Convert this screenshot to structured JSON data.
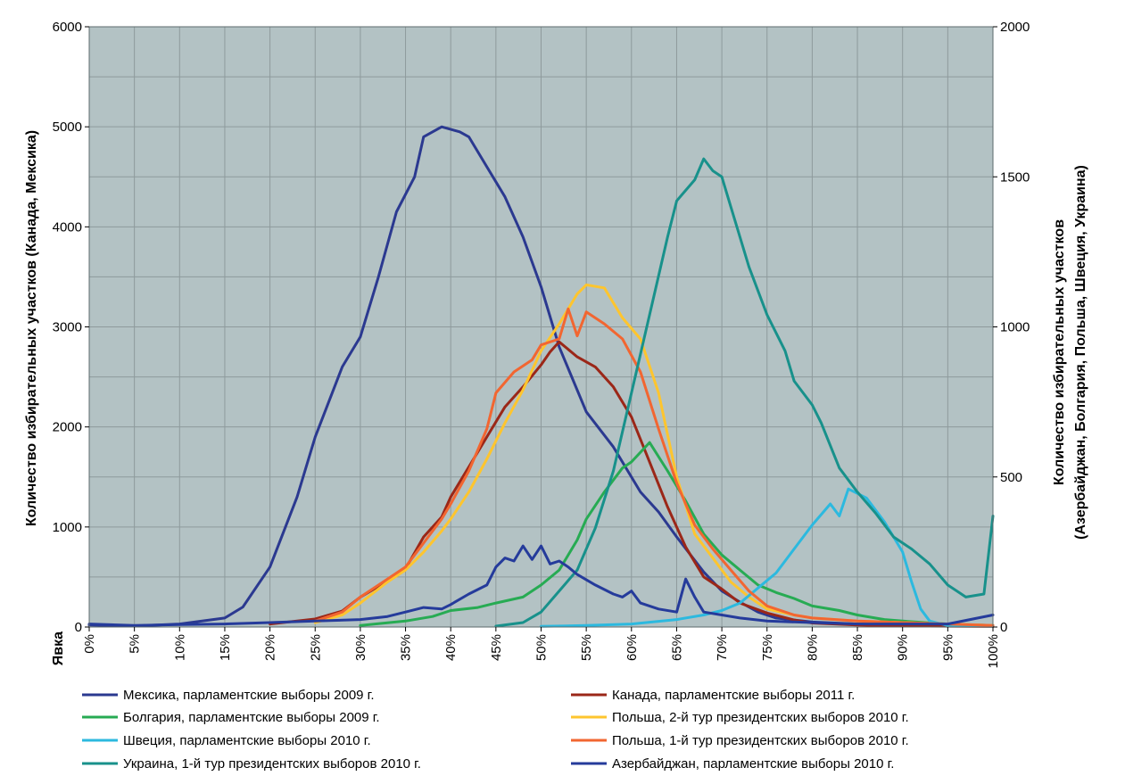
{
  "chart_data": {
    "type": "line",
    "xlabel": "Явка",
    "ylabel_left": "Количество избирательных участков (Канада, Мексика)",
    "ylabel_right_line1": "Количество избирательных участков",
    "ylabel_right_line2": "(Азербайджан, Болгария, Польша, Швеция, Украина)",
    "ylim_left": [
      0,
      6000
    ],
    "ylim_right": [
      0,
      2000
    ],
    "xlim": [
      0,
      100
    ],
    "grid": true,
    "legend_position": "bottom",
    "x_tick_labels": [
      "0%",
      "5%",
      "10%",
      "15%",
      "20%",
      "25%",
      "30%",
      "35%",
      "40%",
      "45%",
      "50%",
      "55%",
      "60%",
      "65%",
      "70%",
      "75%",
      "80%",
      "85%",
      "90%",
      "95%",
      "100%"
    ],
    "y_left_tick_labels": [
      "0",
      "1000",
      "2000",
      "3000",
      "4000",
      "5000",
      "6000"
    ],
    "y_right_tick_labels": [
      "0",
      "500",
      "1000",
      "1500",
      "2000"
    ],
    "series": [
      {
        "name": "Мексика, парламентские выборы 2009 г.",
        "color": "#2b3990",
        "axis": "left",
        "points": [
          [
            0,
            20
          ],
          [
            5,
            10
          ],
          [
            10,
            30
          ],
          [
            15,
            90
          ],
          [
            17,
            200
          ],
          [
            20,
            600
          ],
          [
            23,
            1300
          ],
          [
            25,
            1900
          ],
          [
            28,
            2600
          ],
          [
            30,
            2900
          ],
          [
            32,
            3500
          ],
          [
            34,
            4150
          ],
          [
            36,
            4500
          ],
          [
            37,
            4900
          ],
          [
            39,
            5000
          ],
          [
            41,
            4950
          ],
          [
            42,
            4900
          ],
          [
            44,
            4600
          ],
          [
            46,
            4300
          ],
          [
            48,
            3900
          ],
          [
            50,
            3400
          ],
          [
            52,
            2800
          ],
          [
            55,
            2150
          ],
          [
            58,
            1800
          ],
          [
            61,
            1350
          ],
          [
            63,
            1150
          ],
          [
            65,
            900
          ],
          [
            68,
            550
          ],
          [
            70,
            360
          ],
          [
            72,
            250
          ],
          [
            74,
            150
          ],
          [
            76,
            90
          ],
          [
            80,
            50
          ],
          [
            85,
            30
          ],
          [
            90,
            20
          ],
          [
            95,
            10
          ],
          [
            100,
            10
          ]
        ]
      },
      {
        "name": "Канада, парламентские выборы 2011 г.",
        "color": "#9b2718",
        "axis": "left",
        "points": [
          [
            20,
            30
          ],
          [
            25,
            80
          ],
          [
            28,
            160
          ],
          [
            30,
            300
          ],
          [
            33,
            460
          ],
          [
            35,
            580
          ],
          [
            37,
            900
          ],
          [
            39,
            1100
          ],
          [
            40,
            1300
          ],
          [
            42,
            1600
          ],
          [
            44,
            1900
          ],
          [
            46,
            2200
          ],
          [
            48,
            2400
          ],
          [
            50,
            2620
          ],
          [
            51,
            2750
          ],
          [
            52,
            2850
          ],
          [
            54,
            2700
          ],
          [
            56,
            2600
          ],
          [
            58,
            2400
          ],
          [
            60,
            2100
          ],
          [
            62,
            1650
          ],
          [
            64,
            1200
          ],
          [
            66,
            800
          ],
          [
            68,
            500
          ],
          [
            70,
            380
          ],
          [
            72,
            240
          ],
          [
            75,
            140
          ],
          [
            78,
            70
          ],
          [
            80,
            40
          ],
          [
            85,
            20
          ],
          [
            90,
            10
          ],
          [
            100,
            5
          ]
        ]
      },
      {
        "name": "Болгария, парламентские выборы 2009 г.",
        "color": "#27ab53",
        "axis": "right",
        "points": [
          [
            30,
            5
          ],
          [
            35,
            20
          ],
          [
            38,
            35
          ],
          [
            40,
            55
          ],
          [
            43,
            65
          ],
          [
            45,
            80
          ],
          [
            48,
            100
          ],
          [
            50,
            140
          ],
          [
            52,
            190
          ],
          [
            54,
            290
          ],
          [
            55,
            360
          ],
          [
            57,
            450
          ],
          [
            59,
            530
          ],
          [
            60,
            550
          ],
          [
            62,
            615
          ],
          [
            64,
            520
          ],
          [
            66,
            420
          ],
          [
            68,
            310
          ],
          [
            70,
            240
          ],
          [
            72,
            190
          ],
          [
            74,
            140
          ],
          [
            76,
            115
          ],
          [
            78,
            95
          ],
          [
            80,
            70
          ],
          [
            83,
            55
          ],
          [
            85,
            40
          ],
          [
            88,
            25
          ],
          [
            90,
            20
          ],
          [
            95,
            10
          ],
          [
            100,
            5
          ]
        ]
      },
      {
        "name": "Польша, 2-й тур президентских выборов 2010 г.",
        "color": "#fec52e",
        "axis": "right",
        "points": [
          [
            25,
            15
          ],
          [
            28,
            40
          ],
          [
            30,
            80
          ],
          [
            33,
            150
          ],
          [
            35,
            190
          ],
          [
            37,
            250
          ],
          [
            39,
            320
          ],
          [
            40,
            360
          ],
          [
            42,
            450
          ],
          [
            44,
            560
          ],
          [
            46,
            680
          ],
          [
            48,
            790
          ],
          [
            50,
            920
          ],
          [
            52,
            1010
          ],
          [
            54,
            1110
          ],
          [
            55,
            1140
          ],
          [
            57,
            1130
          ],
          [
            59,
            1030
          ],
          [
            61,
            960
          ],
          [
            63,
            780
          ],
          [
            65,
            500
          ],
          [
            67,
            310
          ],
          [
            69,
            230
          ],
          [
            71,
            150
          ],
          [
            73,
            100
          ],
          [
            75,
            60
          ],
          [
            78,
            40
          ],
          [
            80,
            30
          ],
          [
            85,
            20
          ],
          [
            90,
            15
          ],
          [
            95,
            10
          ],
          [
            100,
            5
          ]
        ]
      },
      {
        "name": "Швеция, парламентские выборы 2010 г.",
        "color": "#2cb9df",
        "axis": "right",
        "points": [
          [
            50,
            2
          ],
          [
            55,
            5
          ],
          [
            60,
            10
          ],
          [
            65,
            25
          ],
          [
            68,
            40
          ],
          [
            70,
            55
          ],
          [
            72,
            80
          ],
          [
            74,
            130
          ],
          [
            76,
            180
          ],
          [
            78,
            260
          ],
          [
            80,
            340
          ],
          [
            82,
            410
          ],
          [
            83,
            370
          ],
          [
            84,
            460
          ],
          [
            86,
            430
          ],
          [
            88,
            350
          ],
          [
            89,
            300
          ],
          [
            90,
            250
          ],
          [
            91,
            150
          ],
          [
            92,
            60
          ],
          [
            93,
            20
          ],
          [
            95,
            5
          ],
          [
            100,
            2
          ]
        ]
      },
      {
        "name": "Польша, 1-й тур президентских выборов 2010 г.",
        "color": "#f26631",
        "axis": "right",
        "points": [
          [
            25,
            20
          ],
          [
            28,
            50
          ],
          [
            30,
            100
          ],
          [
            33,
            160
          ],
          [
            35,
            200
          ],
          [
            37,
            280
          ],
          [
            39,
            360
          ],
          [
            40,
            410
          ],
          [
            42,
            520
          ],
          [
            44,
            660
          ],
          [
            45,
            780
          ],
          [
            47,
            850
          ],
          [
            49,
            890
          ],
          [
            50,
            940
          ],
          [
            52,
            960
          ],
          [
            53,
            1060
          ],
          [
            54,
            970
          ],
          [
            55,
            1050
          ],
          [
            57,
            1010
          ],
          [
            59,
            960
          ],
          [
            61,
            850
          ],
          [
            63,
            660
          ],
          [
            65,
            480
          ],
          [
            67,
            340
          ],
          [
            69,
            260
          ],
          [
            71,
            190
          ],
          [
            73,
            120
          ],
          [
            75,
            70
          ],
          [
            78,
            40
          ],
          [
            80,
            30
          ],
          [
            85,
            20
          ],
          [
            90,
            15
          ],
          [
            95,
            10
          ],
          [
            100,
            5
          ]
        ]
      },
      {
        "name": "Украина, 1-й тур президентских выборов 2010 г.",
        "color": "#18918b",
        "axis": "right",
        "points": [
          [
            45,
            3
          ],
          [
            48,
            15
          ],
          [
            50,
            50
          ],
          [
            52,
            120
          ],
          [
            54,
            190
          ],
          [
            56,
            330
          ],
          [
            58,
            520
          ],
          [
            60,
            780
          ],
          [
            62,
            1040
          ],
          [
            64,
            1300
          ],
          [
            65,
            1420
          ],
          [
            67,
            1490
          ],
          [
            68,
            1560
          ],
          [
            69,
            1520
          ],
          [
            70,
            1500
          ],
          [
            71,
            1400
          ],
          [
            73,
            1200
          ],
          [
            75,
            1040
          ],
          [
            77,
            920
          ],
          [
            78,
            820
          ],
          [
            80,
            740
          ],
          [
            81,
            680
          ],
          [
            83,
            530
          ],
          [
            85,
            450
          ],
          [
            87,
            380
          ],
          [
            89,
            300
          ],
          [
            91,
            260
          ],
          [
            93,
            210
          ],
          [
            95,
            140
          ],
          [
            96,
            120
          ],
          [
            97,
            100
          ],
          [
            99,
            110
          ],
          [
            100,
            370
          ]
        ]
      },
      {
        "name": "Азербайджан, парламентские выборы 2010 г.",
        "color": "#253b9b",
        "axis": "right",
        "points": [
          [
            0,
            10
          ],
          [
            5,
            5
          ],
          [
            10,
            8
          ],
          [
            15,
            10
          ],
          [
            20,
            15
          ],
          [
            25,
            20
          ],
          [
            30,
            25
          ],
          [
            33,
            35
          ],
          [
            35,
            50
          ],
          [
            37,
            65
          ],
          [
            39,
            60
          ],
          [
            40,
            75
          ],
          [
            42,
            110
          ],
          [
            44,
            140
          ],
          [
            45,
            200
          ],
          [
            46,
            230
          ],
          [
            47,
            220
          ],
          [
            48,
            270
          ],
          [
            49,
            225
          ],
          [
            50,
            270
          ],
          [
            51,
            210
          ],
          [
            52,
            220
          ],
          [
            53,
            200
          ],
          [
            54,
            175
          ],
          [
            56,
            140
          ],
          [
            58,
            110
          ],
          [
            59,
            100
          ],
          [
            60,
            120
          ],
          [
            61,
            80
          ],
          [
            63,
            60
          ],
          [
            65,
            50
          ],
          [
            66,
            160
          ],
          [
            67,
            100
          ],
          [
            68,
            50
          ],
          [
            70,
            40
          ],
          [
            72,
            30
          ],
          [
            75,
            20
          ],
          [
            80,
            15
          ],
          [
            85,
            10
          ],
          [
            90,
            10
          ],
          [
            95,
            10
          ],
          [
            100,
            40
          ]
        ]
      }
    ]
  }
}
